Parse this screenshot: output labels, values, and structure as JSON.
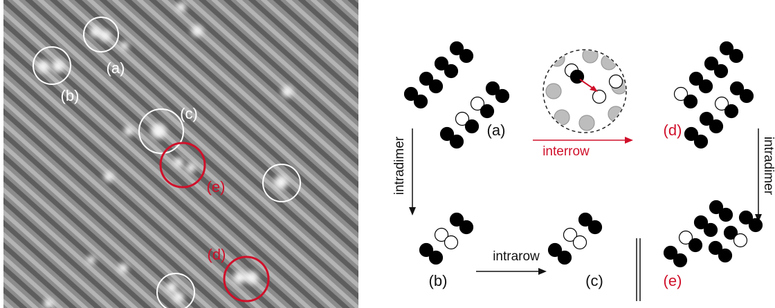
{
  "image": {
    "labels": [
      "(a)",
      "(b)",
      "(c)",
      "(e)",
      "(d)"
    ]
  },
  "diagram": {
    "states": [
      "(a)",
      "(d)",
      "(b)",
      "(c)",
      "(e)"
    ],
    "transitions": [
      "interrow",
      "intradimer",
      "intradimer",
      "intrarow"
    ]
  }
}
